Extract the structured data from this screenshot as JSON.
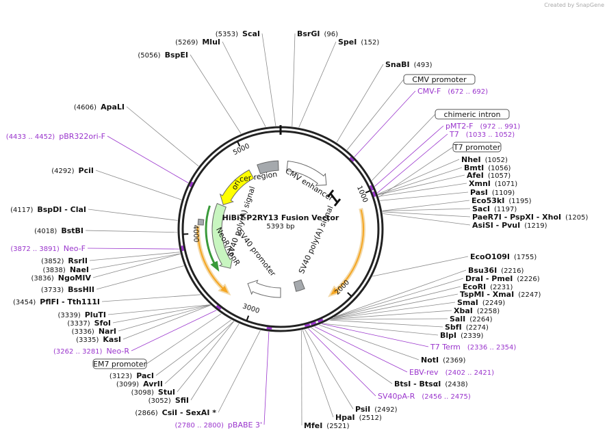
{
  "header": {
    "credit": "Created by SnapGene"
  },
  "map": {
    "title": "HiBiT-P2RY13 Fusion Vector",
    "length": "5393 bp",
    "scale_ticks": [
      1000,
      2000,
      3000,
      4000,
      5000
    ],
    "features": [
      "ori",
      "cer region",
      "CMV enhancer",
      "SV40 poly(A) signal",
      "NeoR/KanR",
      "SV40 promoter",
      "SV40 poly(A) signal"
    ],
    "boxed_features": [
      "CMV promoter",
      "chimeric intron",
      "T7 promoter",
      "EM7 promoter"
    ],
    "sites": [
      {
        "position": "(5353)",
        "name": "ScaI"
      },
      {
        "position": "(5269)",
        "name": "MluI"
      },
      {
        "position": "(5056)",
        "name": "BspEI"
      },
      {
        "position": "(4606)",
        "name": "ApaLI"
      },
      {
        "position": "(4292)",
        "name": "PciI"
      },
      {
        "position": "(4117)",
        "name": "BspDI - ClaI"
      },
      {
        "position": "(4018)",
        "name": "BstBI"
      },
      {
        "position": "(3852)",
        "name": "RsrII"
      },
      {
        "position": "(3838)",
        "name": "NaeI"
      },
      {
        "position": "(3836)",
        "name": "NgoMIV"
      },
      {
        "position": "(3733)",
        "name": "BssHII"
      },
      {
        "position": "(3454)",
        "name": "PflFI - Tth111I"
      },
      {
        "position": "(3339)",
        "name": "PluTI"
      },
      {
        "position": "(3337)",
        "name": "SfoI"
      },
      {
        "position": "(3336)",
        "name": "NarI"
      },
      {
        "position": "(3335)",
        "name": "KasI"
      },
      {
        "position": "(3123)",
        "name": "PacI"
      },
      {
        "position": "(3099)",
        "name": "AvrII"
      },
      {
        "position": "(3098)",
        "name": "StuI"
      },
      {
        "position": "(3052)",
        "name": "SfiI"
      },
      {
        "position": "(2866)",
        "name": "CsiI - SexAI *"
      },
      {
        "position": "(96)",
        "name": "BsrGI"
      },
      {
        "position": "(152)",
        "name": "SpeI"
      },
      {
        "position": "(493)",
        "name": "SnaBI"
      },
      {
        "position": "(1052)",
        "name": "NheI"
      },
      {
        "position": "(1056)",
        "name": "BmtI"
      },
      {
        "position": "(1057)",
        "name": "AfeI"
      },
      {
        "position": "(1071)",
        "name": "XmnI"
      },
      {
        "position": "(1109)",
        "name": "PasI"
      },
      {
        "position": "(1195)",
        "name": "Eco53kI"
      },
      {
        "position": "(1197)",
        "name": "SacI"
      },
      {
        "position": "(1205)",
        "name": "PaeR7I - PspXI - XhoI"
      },
      {
        "position": "(1219)",
        "name": "AsiSI - PvuI"
      },
      {
        "position": "(1755)",
        "name": "EcoO109I"
      },
      {
        "position": "(2216)",
        "name": "Bsu36I"
      },
      {
        "position": "(2226)",
        "name": "DraI - PmeI"
      },
      {
        "position": "(2231)",
        "name": "EcoRI"
      },
      {
        "position": "(2247)",
        "name": "TspMI - XmaI"
      },
      {
        "position": "(2249)",
        "name": "SmaI"
      },
      {
        "position": "(2258)",
        "name": "XbaI"
      },
      {
        "position": "(2264)",
        "name": "SalI"
      },
      {
        "position": "(2274)",
        "name": "SbfI"
      },
      {
        "position": "(2339)",
        "name": "BlpI"
      },
      {
        "position": "(2369)",
        "name": "NotI"
      },
      {
        "position": "(2438)",
        "name": "BtsI - BtsαI"
      },
      {
        "position": "(2492)",
        "name": "PsiI"
      },
      {
        "position": "(2512)",
        "name": "HpaI"
      },
      {
        "position": "(2521)",
        "name": "MfeI"
      }
    ],
    "primers": [
      {
        "name": "CMV-F",
        "range": "(672 .. 692)"
      },
      {
        "name": "pMT2-F",
        "range": "(972 .. 991)"
      },
      {
        "name": "T7",
        "range": "(1033 .. 1052)"
      },
      {
        "name": "T7 Term",
        "range": "(2336 .. 2354)"
      },
      {
        "name": "EBV-rev",
        "range": "(2402 .. 2421)"
      },
      {
        "name": "SV40pA-R",
        "range": "(2456 .. 2475)"
      },
      {
        "name": "pBABE 3'",
        "range": "(2780 .. 2800)"
      },
      {
        "name": "Neo-R",
        "range": "(3262 .. 3281)"
      },
      {
        "name": "Neo-F",
        "range": "(3872 .. 3891)"
      },
      {
        "name": "pBR322ori-F",
        "range": "(4433 .. 4452)"
      }
    ]
  }
}
